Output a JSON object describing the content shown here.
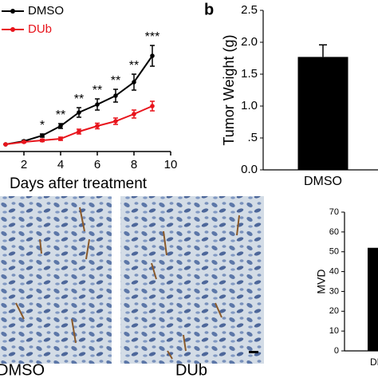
{
  "chart_data": [
    {
      "type": "line",
      "x_label": "Days after treatment",
      "x": [
        1,
        2,
        3,
        4,
        5,
        6,
        7,
        8,
        9
      ],
      "xlim": [
        0,
        10
      ],
      "xticks": [
        2,
        4,
        6,
        8,
        10
      ],
      "ylim": [
        0,
        1900
      ],
      "series": [
        {
          "name": "DMSO",
          "color": "#000000",
          "values": [
            90,
            130,
            200,
            320,
            490,
            590,
            700,
            870,
            1200
          ],
          "errors": [
            0,
            10,
            20,
            30,
            60,
            70,
            80,
            100,
            130
          ]
        },
        {
          "name": "DUb",
          "color": "#e8141c",
          "values": [
            90,
            120,
            140,
            160,
            250,
            320,
            380,
            470,
            570
          ],
          "errors": [
            0,
            10,
            15,
            20,
            30,
            35,
            40,
            50,
            60
          ]
        }
      ],
      "annotations": [
        {
          "x": 3,
          "text": "*"
        },
        {
          "x": 4,
          "text": "**"
        },
        {
          "x": 5,
          "text": "**"
        },
        {
          "x": 6,
          "text": "**"
        },
        {
          "x": 7,
          "text": "**"
        },
        {
          "x": 8,
          "text": "**"
        },
        {
          "x": 9,
          "text": "***"
        }
      ]
    },
    {
      "type": "bar",
      "panel_label": "b",
      "y_label": "Tumor Weight (g)",
      "categories": [
        "DMSO"
      ],
      "values": [
        1.77
      ],
      "errors": [
        0.19
      ],
      "color": "#000000",
      "ylim": [
        0,
        2.5
      ],
      "yticks": [
        {
          "value": 0,
          "label": "0.0"
        },
        {
          "value": 0.5,
          "label": ".5"
        },
        {
          "value": 1,
          "label": "1.0"
        },
        {
          "value": 1.5,
          "label": "1.5"
        },
        {
          "value": 2,
          "label": "2.0"
        },
        {
          "value": 2.5,
          "label": "2.5"
        }
      ]
    },
    {
      "type": "bar",
      "y_label": "MVD",
      "categories": [
        "DMSO"
      ],
      "values": [
        52
      ],
      "color": "#000000",
      "ylim": [
        0,
        70
      ],
      "yticks": [
        0,
        10,
        20,
        30,
        40,
        50,
        60,
        70
      ]
    }
  ],
  "images": {
    "labels": [
      "DMSO",
      "DUb"
    ]
  }
}
